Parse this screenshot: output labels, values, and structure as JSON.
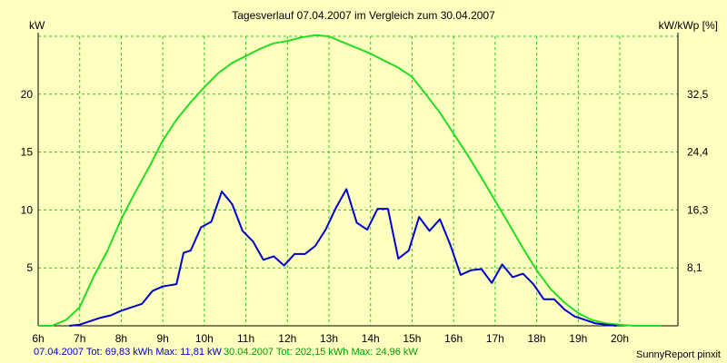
{
  "header": {
    "title": "Tagesverlauf 07.04.2007 im Vergleich zum 30.04.2007",
    "left_unit": "kW",
    "right_unit": "kW/kWp [%]"
  },
  "footer": {
    "series1_summary": "07.04.2007 Tot: 69,83 kWh Max: 11,81 kW",
    "series2_summary": "30.04.2007 Tot: 202,15 kWh Max: 24,96 kW",
    "brand": "SunnyReport pinxit"
  },
  "colors": {
    "background": "#ffffc0",
    "grid": "#22cc22",
    "series1": "#0000cc",
    "series2": "#22dd22"
  },
  "chart_data": {
    "type": "line",
    "title": "Tagesverlauf 07.04.2007 im Vergleich zum 30.04.2007",
    "xlabel": "",
    "ylabel": "kW",
    "y2label": "kW/kWp [%]",
    "xlim": [
      6,
      21.4
    ],
    "ylim": [
      0,
      25
    ],
    "grid": true,
    "x_ticks": [
      6,
      7,
      8,
      9,
      10,
      11,
      12,
      13,
      14,
      15,
      16,
      17,
      18,
      19,
      20
    ],
    "x_tick_labels": [
      "6h",
      "7h",
      "8h",
      "9h",
      "10h",
      "11h",
      "12h",
      "13h",
      "14h",
      "15h",
      "16h",
      "17h",
      "18h",
      "19h",
      "20h"
    ],
    "y_ticks": [
      5,
      10,
      15,
      20
    ],
    "y_tick_labels": [
      "5",
      "10",
      "15",
      "20"
    ],
    "y2_ticks": [
      5,
      10,
      15,
      20
    ],
    "y2_tick_labels": [
      "8,1",
      "16,3",
      "24,4",
      "32,5"
    ],
    "series": [
      {
        "name": "07.04.2007",
        "color": "#0000cc",
        "x": [
          6.75,
          7.0,
          7.25,
          7.5,
          7.75,
          8.0,
          8.25,
          8.5,
          8.75,
          9.0,
          9.17,
          9.33,
          9.5,
          9.67,
          9.92,
          10.17,
          10.42,
          10.67,
          10.92,
          11.17,
          11.42,
          11.67,
          11.92,
          12.17,
          12.42,
          12.67,
          12.92,
          13.17,
          13.42,
          13.67,
          13.92,
          14.17,
          14.42,
          14.67,
          14.92,
          15.17,
          15.42,
          15.67,
          15.92,
          16.17,
          16.42,
          16.67,
          16.92,
          17.17,
          17.42,
          17.67,
          17.92,
          18.17,
          18.42,
          18.67,
          18.92,
          19.17,
          19.42,
          19.67,
          19.92
        ],
        "values": [
          0.0,
          0.1,
          0.4,
          0.7,
          0.9,
          1.3,
          1.6,
          1.9,
          3.0,
          3.4,
          3.5,
          3.6,
          6.3,
          6.5,
          8.5,
          9.0,
          11.6,
          10.5,
          8.2,
          7.3,
          5.7,
          6.0,
          5.2,
          6.2,
          6.2,
          6.9,
          8.3,
          10.2,
          11.8,
          8.9,
          8.3,
          10.1,
          10.1,
          5.8,
          6.5,
          9.4,
          8.2,
          9.2,
          7.0,
          4.4,
          4.8,
          4.9,
          3.7,
          5.3,
          4.2,
          4.5,
          3.6,
          2.3,
          2.3,
          1.4,
          0.8,
          0.5,
          0.2,
          0.1,
          0.0
        ]
      },
      {
        "name": "30.04.2007",
        "color": "#22dd22",
        "x": [
          6.0,
          6.33,
          6.67,
          7.0,
          7.33,
          7.67,
          8.0,
          8.33,
          8.67,
          9.0,
          9.33,
          9.67,
          10.0,
          10.33,
          10.67,
          11.0,
          11.33,
          11.67,
          12.0,
          12.33,
          12.67,
          13.0,
          13.33,
          13.67,
          14.0,
          14.33,
          14.67,
          15.0,
          15.33,
          15.67,
          16.0,
          16.33,
          16.67,
          17.0,
          17.33,
          17.67,
          18.0,
          18.33,
          18.67,
          19.0,
          19.33,
          19.67,
          20.0,
          20.33,
          20.67,
          21.0
        ],
        "values": [
          0.0,
          0.0,
          0.5,
          1.6,
          4.2,
          6.5,
          9.2,
          11.5,
          13.7,
          16.0,
          17.8,
          19.3,
          20.6,
          21.8,
          22.7,
          23.3,
          23.9,
          24.4,
          24.6,
          24.9,
          25.1,
          25.0,
          24.5,
          24.0,
          23.5,
          22.9,
          22.3,
          21.5,
          20.0,
          18.4,
          16.6,
          14.8,
          12.8,
          10.8,
          8.8,
          6.7,
          4.8,
          3.2,
          2.0,
          1.1,
          0.5,
          0.2,
          0.1,
          0.0,
          0.0,
          0.0
        ]
      }
    ]
  }
}
